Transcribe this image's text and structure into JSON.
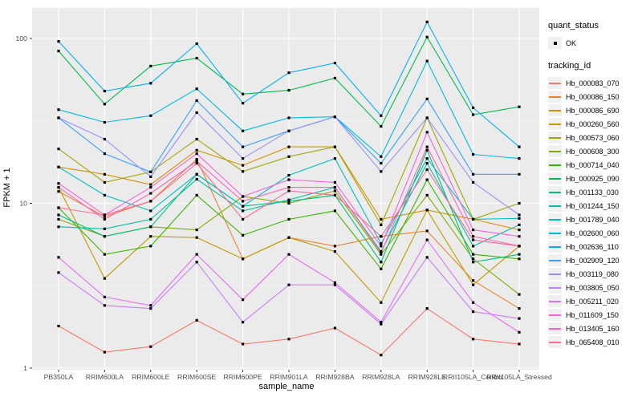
{
  "figure": {
    "background": "#FFFFFF",
    "panel_background": "#EBEBEB",
    "grid_major_color": "#FFFFFF",
    "grid_minor_color": "#F7F7F7",
    "axis_text_color": "#4D4D4D",
    "tick_mark_color": "#333333",
    "point_color": "#000000",
    "legend_key_background": "#F0F0F0"
  },
  "legend": {
    "quant_status_title": "quant_status",
    "quant_status_items": [
      {
        "label": "OK",
        "symbol": "black-point"
      }
    ],
    "tracking_id_title": "tracking_id"
  },
  "chart_data": {
    "type": "line",
    "title": "",
    "xlabel": "sample_name",
    "ylabel": "FPKM + 1",
    "y_scale": "log10",
    "y_ticks": [
      "1",
      "10",
      "100"
    ],
    "ylim": [
      1,
      153
    ],
    "grid": true,
    "legend_position": "right",
    "point_marker": "small black square at every vertex (quant_status OK)",
    "categories": [
      "PB350LA",
      "RRIM600LA",
      "RRIM600LE",
      "RRIM600SE",
      "RRIM600PE",
      "RRIM901LA",
      "RRIM928BA",
      "RRIM928LA",
      "RRIM928LE",
      "RRII105LA_Control",
      "RRII105LA_Stressed"
    ],
    "series": [
      {
        "name": "Hb_000083_070",
        "color": "#F8766D",
        "values": [
          1.8,
          1.25,
          1.35,
          1.95,
          1.4,
          1.5,
          1.75,
          1.2,
          2.3,
          1.5,
          1.4
        ]
      },
      {
        "name": "Hb_000086_150",
        "color": "#EA8331",
        "values": [
          11.8,
          8.3,
          10.3,
          18.5,
          4.6,
          6.2,
          5.5,
          6.3,
          6.8,
          3.4,
          2.3
        ]
      },
      {
        "name": "Hb_000086_690",
        "color": "#D89000",
        "values": [
          16.6,
          15,
          13,
          21,
          17,
          22,
          22,
          8,
          9.1,
          8,
          6.9
        ]
      },
      {
        "name": "Hb_000260_560",
        "color": "#C09B00",
        "values": [
          12.5,
          3.5,
          6.3,
          6.2,
          4.6,
          6.2,
          5.1,
          2.5,
          9.1,
          3.2,
          5.5
        ]
      },
      {
        "name": "Hb_000573_060",
        "color": "#A3A500",
        "values": [
          21.4,
          13.4,
          15.5,
          24.5,
          15.6,
          19.2,
          22,
          7.4,
          33,
          8,
          10
        ]
      },
      {
        "name": "Hb_000608_300",
        "color": "#7CAE00",
        "values": [
          8,
          6.3,
          7.2,
          6.9,
          11,
          10,
          11.9,
          4.9,
          11.2,
          4.6,
          2.8
        ]
      },
      {
        "name": "Hb_000714_040",
        "color": "#39B600",
        "values": [
          9.4,
          4.9,
          5.5,
          11.2,
          6.4,
          8,
          9,
          4,
          13.9,
          4.9,
          4.6
        ]
      },
      {
        "name": "Hb_000925_090",
        "color": "#00BB4E",
        "values": [
          84,
          40,
          68,
          76,
          46,
          48.5,
          57.5,
          29.3,
          102,
          34.5,
          38.5
        ]
      },
      {
        "name": "Hb_001133_030",
        "color": "#00BF7D",
        "values": [
          8.5,
          6.3,
          7.2,
          15,
          9.6,
          10.3,
          11.2,
          4.4,
          21,
          4.4,
          4.9
        ]
      },
      {
        "name": "Hb_001244_150",
        "color": "#00C1A3",
        "values": [
          7.2,
          7.0,
          8.0,
          14,
          9.0,
          10.5,
          12.5,
          5.1,
          17.5,
          5.5,
          7.4
        ]
      },
      {
        "name": "Hb_001789_040",
        "color": "#00BFC4",
        "values": [
          16.6,
          11.2,
          9.0,
          15,
          9.6,
          14.8,
          18.7,
          5.7,
          18.7,
          8,
          8.1
        ]
      },
      {
        "name": "Hb_002600_060",
        "color": "#00BAE0",
        "values": [
          37,
          31,
          34,
          49.5,
          27.5,
          33,
          33.5,
          19.2,
          73,
          19.8,
          18.7
        ]
      },
      {
        "name": "Hb_002636_110",
        "color": "#00B0F6",
        "values": [
          96,
          48,
          53.5,
          93,
          40.5,
          62,
          71,
          34,
          126,
          38,
          22
        ]
      },
      {
        "name": "Hb_002909_120",
        "color": "#35A2FF",
        "values": [
          33,
          20,
          15.5,
          42,
          22,
          27.5,
          33.5,
          17.5,
          43,
          15,
          15
        ]
      },
      {
        "name": "Hb_003119_080",
        "color": "#9590FF",
        "values": [
          33,
          24.5,
          14.5,
          35.5,
          18.7,
          27.5,
          33.5,
          15.6,
          33,
          13.4,
          8.5
        ]
      },
      {
        "name": "Hb_003805_050",
        "color": "#C77CFF",
        "values": [
          3.8,
          2.4,
          2.3,
          4.4,
          1.9,
          3.2,
          3.2,
          1.85,
          4.7,
          2.2,
          2.0
        ]
      },
      {
        "name": "Hb_005211_020",
        "color": "#E76BF3",
        "values": [
          4.7,
          2.7,
          2.4,
          4.9,
          2.6,
          4.9,
          3.3,
          1.9,
          6.0,
          2.5,
          1.65
        ]
      },
      {
        "name": "Hb_011609_150",
        "color": "#FA62DB",
        "values": [
          13.2,
          8.5,
          12.5,
          20,
          11,
          13.9,
          13.4,
          5.5,
          27,
          6.9,
          6.3
        ]
      },
      {
        "name": "Hb_013405_160",
        "color": "#FF62BC",
        "values": [
          12.5,
          8.0,
          11.5,
          18,
          10.3,
          12.5,
          12.5,
          5.0,
          22,
          6.3,
          5.5
        ]
      },
      {
        "name": "Hb_065408_010",
        "color": "#FF6A98",
        "values": [
          9.4,
          8.5,
          10.3,
          17.5,
          8.0,
          11.9,
          11.2,
          6.3,
          16,
          6.0,
          5.5
        ]
      }
    ]
  }
}
